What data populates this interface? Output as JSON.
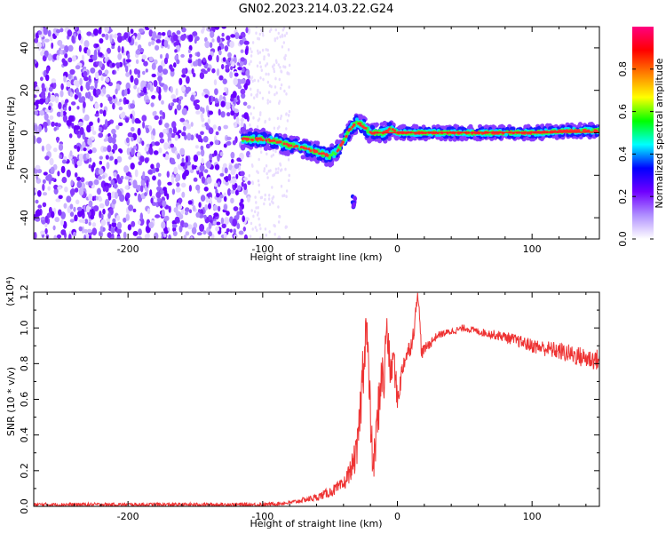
{
  "title": "GN02.2023.214.03.22.G24",
  "chart_data": [
    {
      "type": "heatmap",
      "xlabel": "Height of straight line (km)",
      "ylabel": "Frequency (Hz)",
      "xlim": [
        -270,
        150
      ],
      "ylim": [
        -50,
        50
      ],
      "xticks": [
        -200,
        -100,
        0,
        100
      ],
      "xtick_labels": [
        "-200",
        "-100",
        "0",
        "100"
      ],
      "yticks": [
        -40,
        -20,
        0,
        20,
        40
      ],
      "ytick_labels": [
        "-40",
        "-20",
        "0",
        "20",
        "40"
      ],
      "colorbar": {
        "label": "Normalized spectral amplitude",
        "range": [
          0,
          1
        ],
        "ticks": [
          0.0,
          0.2,
          0.4,
          0.6,
          0.8
        ],
        "tick_labels": [
          "0.0",
          "0.2",
          "0.4",
          "0.6",
          "0.8"
        ],
        "colors": [
          "#ffffff",
          "#b090ff",
          "#7000ff",
          "#0000ff",
          "#00ffff",
          "#00ff00",
          "#ffff00",
          "#ff8000",
          "#ff0000",
          "#ff0080"
        ]
      },
      "noise_region_x": [
        -270,
        -110
      ],
      "ridge": {
        "x": [
          -115,
          -100,
          -90,
          -80,
          -70,
          -60,
          -50,
          -45,
          -40,
          -35,
          -30,
          -25,
          -20,
          -10,
          -5,
          0,
          20,
          60,
          100,
          130,
          150
        ],
        "freq": [
          -3,
          -3,
          -4,
          -6,
          -7,
          -9,
          -11,
          -9,
          -4,
          2,
          5,
          3,
          0,
          0,
          2,
          0,
          0,
          0,
          0,
          1,
          1
        ]
      },
      "blob": {
        "x": -32,
        "freq": [
          -30,
          -35
        ]
      }
    },
    {
      "type": "line",
      "xlabel": "Height of straight line (km)",
      "ylabel": "SNR (10 * v/v)",
      "scale_label": "(x10⁴)",
      "xlim": [
        -270,
        150
      ],
      "ylim": [
        0,
        1.2
      ],
      "xticks": [
        -200,
        -100,
        0,
        100
      ],
      "xtick_labels": [
        "-200",
        "-100",
        "0",
        "100"
      ],
      "yticks": [
        0.0,
        0.2,
        0.4,
        0.6,
        0.8,
        1.0,
        1.2
      ],
      "ytick_labels": [
        "0.0",
        "0.2",
        "0.4",
        "0.6",
        "0.8",
        "1.0",
        "1.2"
      ],
      "series": [
        {
          "color": "#ee3333",
          "x": [
            -270,
            -120,
            -100,
            -80,
            -60,
            -50,
            -40,
            -35,
            -30,
            -27,
            -25,
            -23,
            -20,
            -18,
            -15,
            -12,
            -10,
            -8,
            -5,
            -3,
            0,
            5,
            10,
            13,
            15,
            18,
            20,
            25,
            30,
            40,
            50,
            60,
            80,
            100,
            120,
            140,
            150
          ],
          "y": [
            0.01,
            0.01,
            0.01,
            0.02,
            0.05,
            0.08,
            0.12,
            0.2,
            0.3,
            0.6,
            0.85,
            1.03,
            0.5,
            0.2,
            0.45,
            0.75,
            0.68,
            1.03,
            0.72,
            0.85,
            0.6,
            0.82,
            0.9,
            1.02,
            1.23,
            0.86,
            0.88,
            0.92,
            0.96,
            0.98,
            1.0,
            0.98,
            0.95,
            0.9,
            0.87,
            0.83,
            0.82
          ],
          "noise": [
            0.01,
            0.01,
            0.01,
            0.01,
            0.02,
            0.03,
            0.04,
            0.06,
            0.1,
            0.15,
            0.2,
            0.15,
            0.15,
            0.1,
            0.15,
            0.15,
            0.15,
            0.12,
            0.1,
            0.1,
            0.08,
            0.06,
            0.05,
            0.05,
            0.05,
            0.04,
            0.03,
            0.03,
            0.02,
            0.02,
            0.02,
            0.02,
            0.03,
            0.04,
            0.05,
            0.06,
            0.06
          ]
        }
      ]
    }
  ]
}
